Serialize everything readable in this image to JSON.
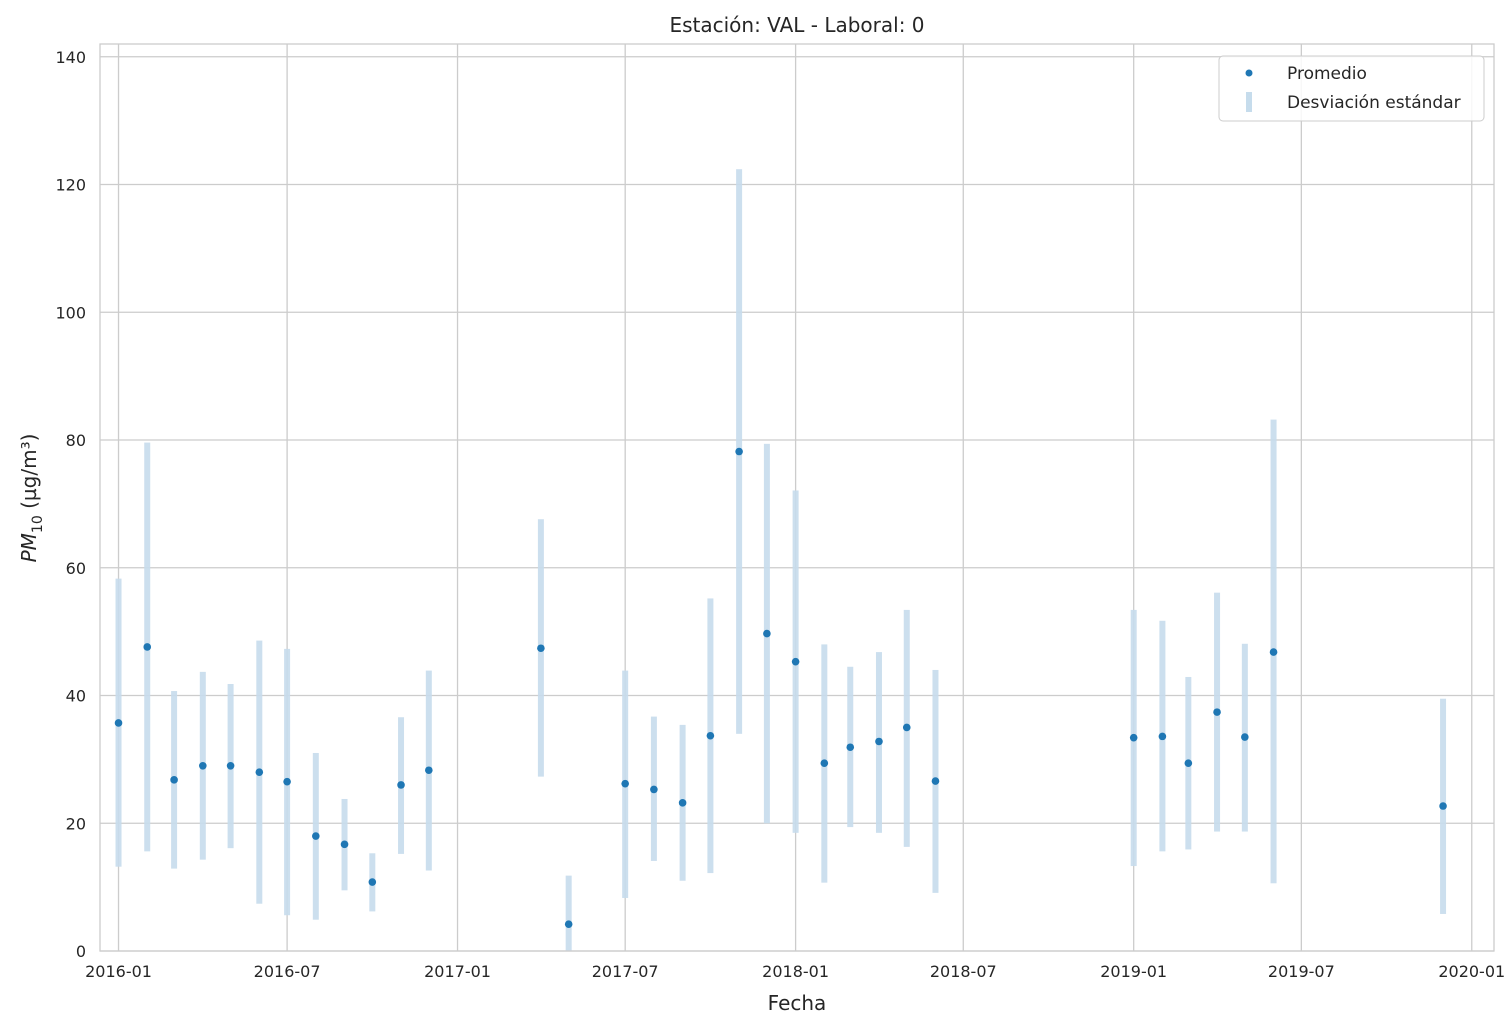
{
  "chart_data": {
    "type": "scatter",
    "title": "Estación: VAL - Laboral: 0",
    "xlabel": "Fecha",
    "ylabel": {
      "base": "PM",
      "sub": "10",
      "unit": " (µg/m³)"
    },
    "ylim": [
      0,
      142
    ],
    "xlim": [
      "2015-12-12",
      "2020-01-25"
    ],
    "y_ticks": [
      0,
      20,
      40,
      60,
      80,
      100,
      120,
      140
    ],
    "x_ticks": [
      "2016-01",
      "2016-07",
      "2017-01",
      "2017-07",
      "2018-01",
      "2018-07",
      "2019-01",
      "2019-07",
      "2020-01"
    ],
    "grid": true,
    "legend": {
      "position": "top-right",
      "entries": [
        "Promedio",
        "Desviación estándar"
      ]
    },
    "colors": {
      "mean": "#1f77b4",
      "std": "#c6dcec",
      "grid": "#cccccc",
      "axes": "#cccccc"
    },
    "series": [
      {
        "name": "Promedio",
        "x": [
          "2016-01-01",
          "2016-02-01",
          "2016-03-01",
          "2016-04-01",
          "2016-05-01",
          "2016-06-01",
          "2016-07-01",
          "2016-08-01",
          "2016-09-01",
          "2016-10-01",
          "2016-11-01",
          "2016-12-01",
          "2017-04-01",
          "2017-05-01",
          "2017-07-01",
          "2017-08-01",
          "2017-09-01",
          "2017-10-01",
          "2017-11-01",
          "2017-12-01",
          "2018-01-01",
          "2018-02-01",
          "2018-03-01",
          "2018-04-01",
          "2018-05-01",
          "2018-06-01",
          "2019-01-01",
          "2019-02-01",
          "2019-03-01",
          "2019-04-01",
          "2019-05-01",
          "2019-06-01",
          "2019-12-01"
        ],
        "values": [
          35.7,
          47.6,
          26.8,
          29.0,
          29.0,
          28.0,
          26.5,
          18.0,
          16.7,
          10.8,
          26.0,
          28.3,
          47.4,
          4.2,
          26.2,
          25.3,
          23.2,
          33.7,
          78.2,
          49.7,
          45.3,
          29.4,
          31.9,
          32.8,
          35.0,
          26.6,
          33.4,
          33.6,
          29.4,
          37.4,
          33.5,
          46.8,
          22.7
        ]
      },
      {
        "name": "Desviación estándar",
        "x": [
          "2016-01-01",
          "2016-02-01",
          "2016-03-01",
          "2016-04-01",
          "2016-05-01",
          "2016-06-01",
          "2016-07-01",
          "2016-08-01",
          "2016-09-01",
          "2016-10-01",
          "2016-11-01",
          "2016-12-01",
          "2017-04-01",
          "2017-05-01",
          "2017-07-01",
          "2017-08-01",
          "2017-09-01",
          "2017-10-01",
          "2017-11-01",
          "2017-12-01",
          "2018-01-01",
          "2018-02-01",
          "2018-03-01",
          "2018-04-01",
          "2018-05-01",
          "2018-06-01",
          "2019-01-01",
          "2019-02-01",
          "2019-03-01",
          "2019-04-01",
          "2019-05-01",
          "2019-06-01",
          "2019-12-01"
        ],
        "low": [
          13.2,
          15.6,
          12.9,
          14.3,
          16.1,
          7.4,
          5.6,
          4.9,
          9.5,
          6.2,
          15.2,
          12.6,
          27.3,
          0.0,
          8.3,
          14.1,
          11.0,
          12.2,
          34.0,
          20.0,
          18.5,
          10.7,
          19.4,
          18.5,
          16.3,
          9.1,
          13.3,
          15.6,
          15.9,
          18.7,
          18.7,
          10.6,
          5.8
        ],
        "high": [
          58.3,
          79.6,
          40.7,
          43.7,
          41.8,
          48.6,
          47.3,
          31.0,
          23.8,
          15.3,
          36.6,
          43.9,
          67.6,
          11.8,
          43.9,
          36.7,
          35.4,
          55.2,
          122.4,
          79.4,
          72.1,
          48.0,
          44.5,
          46.8,
          53.4,
          44.0,
          53.4,
          51.7,
          42.9,
          56.1,
          48.1,
          83.2,
          39.5
        ]
      }
    ]
  }
}
